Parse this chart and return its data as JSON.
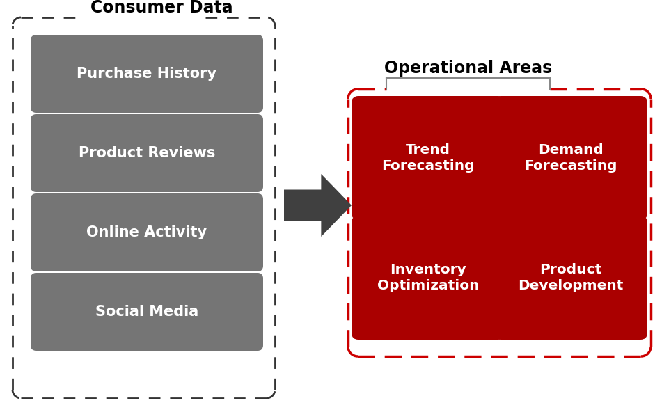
{
  "bg_color": "#ffffff",
  "left_box_color": "#757575",
  "right_box_color": "#aa0000",
  "arrow_color": "#404040",
  "text_color_white": "#ffffff",
  "text_color_black": "#000000",
  "left_title": "Consumer Data",
  "right_title": "Operational Areas",
  "left_items": [
    "Purchase History",
    "Product Reviews",
    "Online Activity",
    "Social Media"
  ],
  "right_items": [
    [
      "Trend\nForecasting",
      "Demand\nForecasting"
    ],
    [
      "Inventory\nOptimization",
      "Product\nDevelopment"
    ]
  ],
  "fig_w": 9.51,
  "fig_h": 5.92,
  "dpi": 100
}
